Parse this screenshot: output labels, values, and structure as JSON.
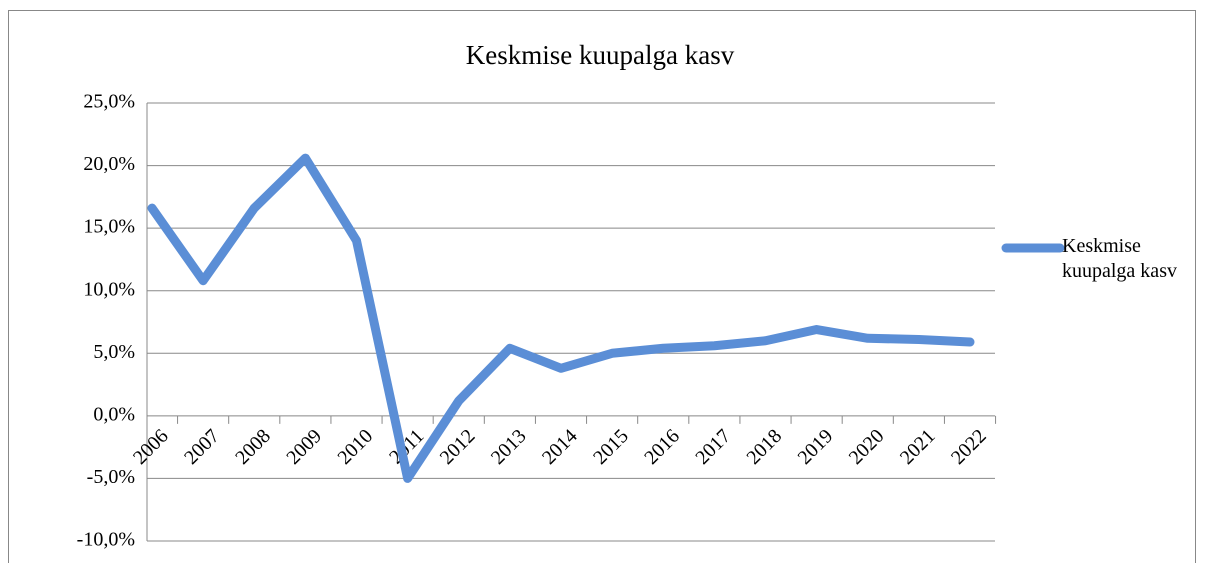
{
  "chart_data": {
    "type": "line",
    "title": "Keskmise kuupalga kasv",
    "categories": [
      "2006",
      "2007",
      "2008",
      "2009",
      "2010",
      "2011",
      "2012",
      "2013",
      "2014",
      "2015",
      "2016",
      "2017",
      "2018",
      "2019",
      "2020",
      "2021",
      "2022"
    ],
    "series": [
      {
        "name": "Keskmise kuupalga kasv",
        "color": "#5b8ed6",
        "values": [
          16.6,
          10.8,
          16.6,
          20.6,
          14.0,
          -5.0,
          1.2,
          5.4,
          3.8,
          5.0,
          5.4,
          5.6,
          6.0,
          6.9,
          6.2,
          6.1,
          5.9
        ]
      }
    ],
    "ylim": [
      -10,
      25
    ],
    "yticks": [
      {
        "value": -10,
        "label": "-10,0%"
      },
      {
        "value": -5,
        "label": "-5,0%"
      },
      {
        "value": 0,
        "label": "0,0%"
      },
      {
        "value": 5,
        "label": "5,0%"
      },
      {
        "value": 10,
        "label": "10,0%"
      },
      {
        "value": 15,
        "label": "15,0%"
      },
      {
        "value": 20,
        "label": "20,0%"
      },
      {
        "value": 25,
        "label": "25,0%"
      }
    ],
    "grid": true,
    "legend": "right"
  }
}
